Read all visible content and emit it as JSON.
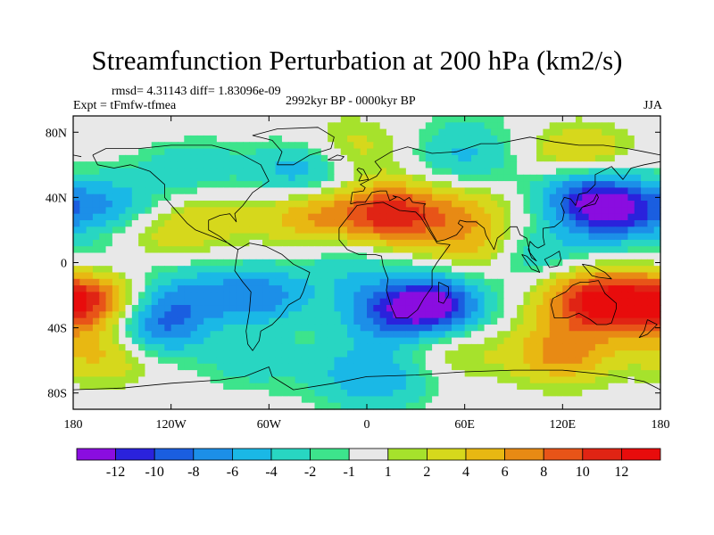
{
  "chart_data": {
    "type": "heatmap",
    "title": "Streamfunction Perturbation at 200 hPa (km2/s)",
    "stats_line": "rmsd= 4.31143 diff= 1.83096e-09",
    "experiment": "Expt = tFmfw-tfmea",
    "period": "2992kyr BP - 0000kyr BP",
    "season": "JJA",
    "x_ticks": [
      "180",
      "120W",
      "60W",
      "0",
      "60E",
      "120E",
      "180"
    ],
    "x_tick_values": [
      -180,
      -120,
      -60,
      0,
      60,
      120,
      180
    ],
    "y_ticks": [
      "80N",
      "40N",
      "0",
      "40S",
      "80S"
    ],
    "y_tick_values": [
      80,
      40,
      0,
      -40,
      -80
    ],
    "lon_range": [
      -180,
      180
    ],
    "lat_range": [
      -90,
      90
    ],
    "colorbar_labels": [
      "-12",
      "-10",
      "-8",
      "-6",
      "-4",
      "-2",
      "-1",
      "1",
      "2",
      "4",
      "6",
      "8",
      "10",
      "12"
    ],
    "colorbar_levels": [
      -12,
      -10,
      -8,
      -6,
      -4,
      -2,
      -1,
      1,
      2,
      4,
      6,
      8,
      10,
      12
    ],
    "colorbar_colors": [
      "#8a0de0",
      "#2a22dc",
      "#1a5ee0",
      "#1c8fe8",
      "#1ab8e6",
      "#28d6c2",
      "#3de48c",
      "#e8e8e8",
      "#a6e22c",
      "#d6d81c",
      "#e8b812",
      "#e88a14",
      "#e85418",
      "#e02414",
      "#e80c0c"
    ],
    "field_centers": [
      {
        "lon": 15,
        "lat": 30,
        "value": 11
      },
      {
        "lon": -35,
        "lat": 30,
        "value": 6
      },
      {
        "lon": 150,
        "lat": 32,
        "value": -12
      },
      {
        "lon": 130,
        "lat": 45,
        "value": -6
      },
      {
        "lon": -160,
        "lat": 35,
        "value": -6
      },
      {
        "lon": -170,
        "lat": -22,
        "value": 10
      },
      {
        "lon": 135,
        "lat": -22,
        "value": 9
      },
      {
        "lon": 160,
        "lat": -28,
        "value": 7
      },
      {
        "lon": 40,
        "lat": -26,
        "value": -13
      },
      {
        "lon": 10,
        "lat": -32,
        "value": -6
      },
      {
        "lon": -65,
        "lat": -20,
        "value": -7
      },
      {
        "lon": -110,
        "lat": -20,
        "value": -5
      },
      {
        "lon": -130,
        "lat": -40,
        "value": -8
      },
      {
        "lon": -40,
        "lat": 55,
        "value": -6
      },
      {
        "lon": -110,
        "lat": 60,
        "value": -4
      },
      {
        "lon": 60,
        "lat": 65,
        "value": -4
      },
      {
        "lon": 130,
        "lat": 65,
        "value": 5
      },
      {
        "lon": -10,
        "lat": 70,
        "value": 3
      },
      {
        "lon": -100,
        "lat": 25,
        "value": 3
      },
      {
        "lon": -140,
        "lat": 15,
        "value": 3
      },
      {
        "lon": 105,
        "lat": 5,
        "value": -4
      },
      {
        "lon": 65,
        "lat": 10,
        "value": 4
      },
      {
        "lon": -160,
        "lat": 0,
        "value": -3
      },
      {
        "lon": -10,
        "lat": -5,
        "value": -3
      },
      {
        "lon": 120,
        "lat": -55,
        "value": 7
      },
      {
        "lon": -160,
        "lat": -55,
        "value": 5
      },
      {
        "lon": 50,
        "lat": -55,
        "value": 3
      },
      {
        "lon": -70,
        "lat": -60,
        "value": -3
      },
      {
        "lon": -10,
        "lat": -65,
        "value": -3
      },
      {
        "lon": 20,
        "lat": -68,
        "value": -3
      },
      {
        "lon": 60,
        "lat": 30,
        "value": 4
      },
      {
        "lon": 0,
        "lat": -80,
        "value": -2
      },
      {
        "lon": -120,
        "lat": 80,
        "value": 1
      },
      {
        "lon": 60,
        "lat": 85,
        "value": -1
      }
    ]
  }
}
